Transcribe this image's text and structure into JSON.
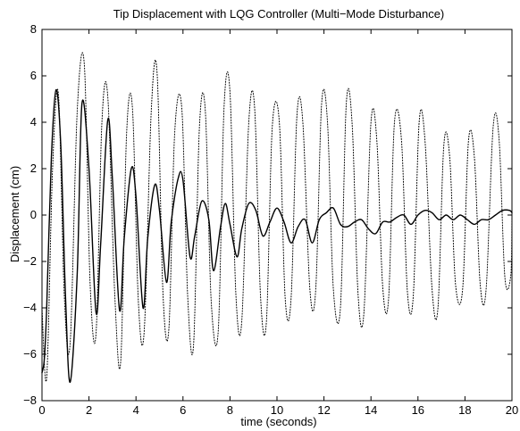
{
  "chart_data": {
    "type": "line",
    "title": "Tip Displacement with LQG Controller (Multi−Mode Disturbance)",
    "xlabel": "time (seconds)",
    "ylabel": "Displacement (cm)",
    "xlim": [
      0,
      20
    ],
    "ylim": [
      -8,
      8
    ],
    "xticks": [
      "0",
      "2",
      "4",
      "6",
      "8",
      "10",
      "12",
      "14",
      "16",
      "18",
      "20"
    ],
    "yticks": [
      "8",
      "6",
      "4",
      "2",
      "0",
      "−2",
      "−4",
      "−6",
      "−8"
    ],
    "grid": false,
    "legend": "none",
    "series": [
      {
        "style": "solid",
        "x": [
          0,
          0.1,
          0.2,
          0.4,
          0.6,
          0.8,
          1.0,
          1.2,
          1.5,
          1.7,
          2.0,
          2.3,
          2.5,
          2.8,
          3.0,
          3.3,
          3.5,
          3.8,
          4.0,
          4.3,
          4.5,
          4.8,
          5.0,
          5.3,
          5.5,
          5.8,
          6.0,
          6.3,
          6.5,
          6.8,
          7.1,
          7.3,
          7.6,
          7.8,
          8.0,
          8.3,
          8.5,
          8.8,
          9.1,
          9.4,
          9.7,
          10.0,
          10.3,
          10.6,
          10.9,
          11.2,
          11.5,
          11.8,
          12.1,
          12.4,
          12.7,
          13.0,
          13.3,
          13.6,
          13.9,
          14.2,
          14.5,
          14.8,
          15.1,
          15.4,
          15.7,
          16.0,
          16.3,
          16.6,
          16.9,
          17.2,
          17.5,
          17.8,
          18.1,
          18.4,
          18.7,
          19.0,
          19.3,
          19.6,
          19.9,
          20.0
        ],
        "y": [
          -6.8,
          -6.2,
          -4.0,
          2.5,
          5.4,
          3.0,
          -3.5,
          -7.2,
          -2.5,
          4.8,
          2.0,
          -4.2,
          -1.2,
          4.1,
          1.5,
          -4.1,
          -1.0,
          2.0,
          0.8,
          -4.0,
          -1.0,
          1.3,
          0.2,
          -2.9,
          -0.3,
          1.6,
          1.5,
          -1.8,
          -0.9,
          0.6,
          -0.2,
          -2.4,
          -0.5,
          0.5,
          -0.4,
          -1.8,
          -0.6,
          0.5,
          0.2,
          -0.9,
          -0.3,
          0.3,
          -0.3,
          -1.2,
          -0.5,
          -0.2,
          -1.2,
          -0.2,
          0.1,
          0.3,
          -0.4,
          -0.5,
          -0.3,
          -0.2,
          -0.6,
          -0.8,
          -0.3,
          -0.3,
          -0.1,
          0.0,
          -0.4,
          0.0,
          0.2,
          0.1,
          -0.2,
          0.0,
          -0.2,
          0.0,
          -0.2,
          -0.4,
          -0.2,
          -0.2,
          0.0,
          0.2,
          0.2,
          0.1
        ]
      },
      {
        "style": "dotted",
        "x": [
          0,
          0.2,
          0.45,
          0.7,
          0.95,
          1.2,
          1.5,
          1.8,
          2.05,
          2.3,
          2.55,
          2.8,
          3.1,
          3.35,
          3.6,
          3.85,
          4.1,
          4.35,
          4.65,
          4.9,
          5.15,
          5.4,
          5.65,
          5.95,
          6.2,
          6.45,
          6.7,
          6.95,
          7.2,
          7.5,
          7.75,
          8.0,
          8.25,
          8.5,
          8.8,
          9.05,
          9.3,
          9.55,
          9.8,
          10.1,
          10.35,
          10.6,
          10.85,
          11.1,
          11.4,
          11.65,
          11.9,
          12.15,
          12.4,
          12.7,
          12.95,
          13.2,
          13.45,
          13.7,
          14.0,
          14.25,
          14.5,
          14.75,
          15.0,
          15.3,
          15.55,
          15.8,
          16.05,
          16.3,
          16.6,
          16.85,
          17.1,
          17.35,
          17.6,
          17.9,
          18.15,
          18.4,
          18.65,
          18.9,
          19.2,
          19.45,
          19.7,
          19.95,
          20.0
        ],
        "y": [
          -4.0,
          -7.0,
          2.0,
          5.2,
          -3.5,
          -5.5,
          4.5,
          6.5,
          -3.0,
          -5.1,
          4.0,
          5.1,
          -3.5,
          -6.3,
          3.5,
          4.6,
          -3.7,
          -5.0,
          4.5,
          6.1,
          -3.4,
          -4.9,
          3.6,
          4.6,
          -3.5,
          -5.6,
          3.8,
          4.5,
          -3.7,
          -5.0,
          4.7,
          5.3,
          -3.4,
          -4.6,
          4.0,
          4.6,
          -3.5,
          -4.6,
          3.8,
          4.0,
          -3.6,
          -3.6,
          4.3,
          4.0,
          -3.2,
          -3.2,
          4.8,
          4.0,
          -3.2,
          -4.0,
          4.8,
          3.9,
          -3.4,
          -4.2,
          4.0,
          3.2,
          -3.1,
          -3.6,
          4.0,
          3.2,
          -3.3,
          -3.5,
          4.0,
          3.2,
          -3.2,
          -4.0,
          3.0,
          2.5,
          -3.0,
          -3.2,
          3.2,
          2.5,
          -3.0,
          -3.2,
          3.8,
          3.3,
          -2.7,
          -2.6,
          0.0
        ]
      }
    ]
  }
}
